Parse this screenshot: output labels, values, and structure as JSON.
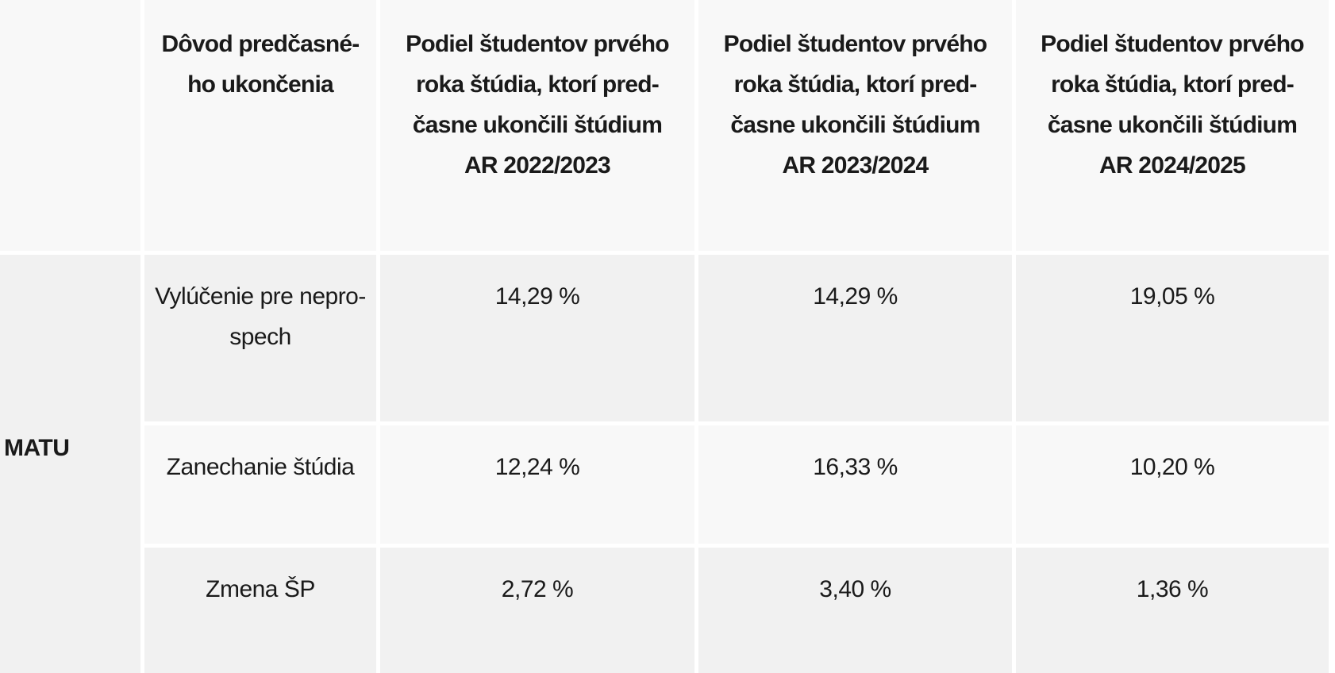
{
  "colors": {
    "background": "#ffffff",
    "header_cell_bg": "#f8f8f8",
    "row_light_bg": "#f8f8f8",
    "row_dark_bg": "#f1f1f1",
    "text": "#1a1a1a"
  },
  "table": {
    "corner_label": "",
    "row_group_label": "MATU",
    "columns": [
      {
        "lines": [
          "Dôvod predčasné-",
          "ho ukončenia"
        ]
      },
      {
        "lines": [
          "Podiel študentov prvého",
          "roka štúdia, ktorí pred-",
          "časne ukončili štúdium",
          "AR 2022/2023"
        ]
      },
      {
        "lines": [
          "Podiel študentov prvého",
          "roka štúdia, ktorí pred-",
          "časne ukončili štúdium",
          "AR 2023/2024"
        ]
      },
      {
        "lines": [
          "Podiel študentov prvého",
          "roka štúdia, ktorí pred-",
          "časne ukončili štúdium",
          "AR 2024/2025"
        ]
      }
    ],
    "rows": [
      {
        "label_lines": [
          "Vylúčenie pre nepro-",
          "spech"
        ],
        "values": [
          "14,29 %",
          "14,29 %",
          "19,05 %"
        ]
      },
      {
        "label_lines": [
          "Zanechanie štúdia"
        ],
        "values": [
          "12,24 %",
          "16,33 %",
          "10,20 %"
        ]
      },
      {
        "label_lines": [
          "Zmena ŠP"
        ],
        "values": [
          "2,72 %",
          "3,40 %",
          "1,36 %"
        ]
      }
    ]
  },
  "chart_data": {
    "type": "table",
    "row_group": "MATU",
    "columns": [
      "Dôvod predčasného ukončenia",
      "Podiel študentov prvého roka štúdia, ktorí predčasne ukončili štúdium AR 2022/2023",
      "Podiel študentov prvého roka štúdia, ktorí predčasne ukončili štúdium AR 2023/2024",
      "Podiel študentov prvého roka štúdia, ktorí predčasne ukončili štúdium AR 2024/2025"
    ],
    "rows": [
      [
        "Vylúčenie pre neprospech",
        "14,29 %",
        "14,29 %",
        "19,05 %"
      ],
      [
        "Zanechanie štúdia",
        "12,24 %",
        "16,33 %",
        "10,20 %"
      ],
      [
        "Zmena ŠP",
        "2,72 %",
        "3,40 %",
        "1,36 %"
      ]
    ]
  }
}
